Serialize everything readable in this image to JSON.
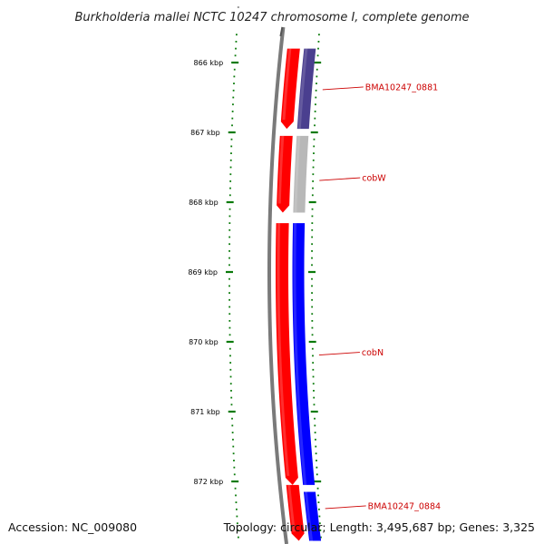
{
  "title": "Burkholderia mallei NCTC 10247 chromosome I, complete genome",
  "footer": {
    "accession": "Accession: NC_009080",
    "topology": "Topology: circular; Length: 3,495,687 bp; Genes: 3,325"
  },
  "colors": {
    "backbone": "#7a7a7a",
    "tick_green": "#0a7a0a",
    "label_red": "#cc0000",
    "cds_red": "#ff0000",
    "gene_dark_blue": "#4a3f8f",
    "gene_grey": "#b8b8b8",
    "gene_blue": "#0000ff"
  },
  "chart_data": {
    "type": "genome-map",
    "kbp_ticks": [
      {
        "value": 866,
        "label": "866 kbp"
      },
      {
        "value": 867,
        "label": "867 kbp"
      },
      {
        "value": 868,
        "label": "868 kbp"
      },
      {
        "value": 869,
        "label": "869 kbp"
      },
      {
        "value": 870,
        "label": "870 kbp"
      },
      {
        "value": 871,
        "label": "871 kbp"
      },
      {
        "value": 872,
        "label": "872 kbp"
      }
    ],
    "cds_track": [
      {
        "start": 865.8,
        "end": 866.95,
        "color": "#ff0000"
      },
      {
        "start": 867.05,
        "end": 868.15,
        "color": "#ff0000"
      },
      {
        "start": 868.3,
        "end": 872.05,
        "color": "#ff0000"
      },
      {
        "start": 872.05,
        "end": 872.85,
        "color": "#ff0000"
      }
    ],
    "genes": [
      {
        "name": "BMA10247_0881",
        "start": 865.8,
        "end": 866.95,
        "color": "#4a3f8f",
        "label_at": 866.35
      },
      {
        "name": "cobW",
        "start": 867.05,
        "end": 868.15,
        "color": "#b8b8b8",
        "label_at": 867.65
      },
      {
        "name": "cobN",
        "start": 868.3,
        "end": 872.05,
        "color": "#0000ff",
        "label_at": 870.15
      },
      {
        "name": "BMA10247_0884",
        "start": 872.15,
        "end": 872.85,
        "color": "#0000ff",
        "label_at": 872.35
      }
    ]
  }
}
